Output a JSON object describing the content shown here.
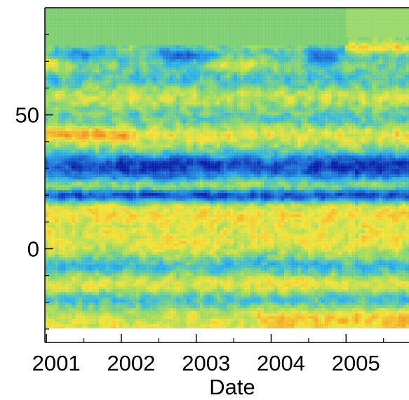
{
  "chart_data": {
    "type": "heatmap",
    "title": "",
    "xlabel": "Date",
    "ylabel": "",
    "x_ticks": [
      "2001",
      "2002",
      "2003",
      "2004",
      "2005"
    ],
    "y_ticks": [
      "50",
      "0"
    ],
    "x_range": [
      2000.98,
      2005.84
    ],
    "y_range": [
      -35,
      90
    ],
    "y_tick_values": [
      50,
      0
    ],
    "grid": false,
    "colormap": [
      "#0a1fa8",
      "#1f6fd8",
      "#2fb6e8",
      "#8fd86a",
      "#f3e43a",
      "#f39b27",
      "#d94b1f"
    ],
    "background_color": "#7fcf74",
    "data_top": 76,
    "data_top_after_2005": 79
  }
}
